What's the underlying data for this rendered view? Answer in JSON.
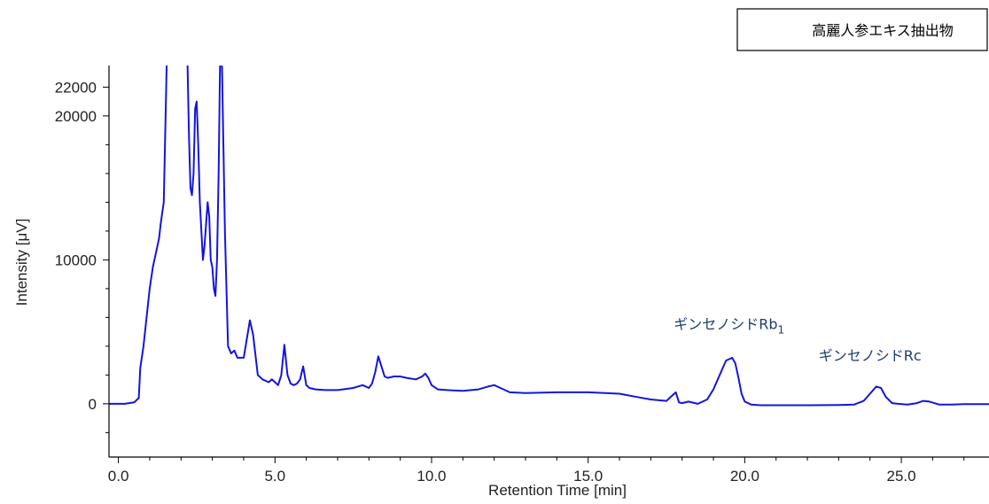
{
  "chart_data": {
    "type": "line",
    "legend": "高麗人参エキス抽出物",
    "xlabel": "Retention Time [min]",
    "ylabel": "Intensity [μV]",
    "xlim": [
      -0.3,
      27.8
    ],
    "ylim": [
      -3700,
      23500
    ],
    "x_ticks": [
      {
        "value": 0,
        "label": "0.0"
      },
      {
        "value": 5,
        "label": "5.0"
      },
      {
        "value": 10,
        "label": "10.0"
      },
      {
        "value": 15,
        "label": "15.0"
      },
      {
        "value": 20,
        "label": "20.0"
      },
      {
        "value": 25,
        "label": "25.0"
      }
    ],
    "y_ticks": [
      {
        "value": 0,
        "label": "0"
      },
      {
        "value": 10000,
        "label": "10000"
      },
      {
        "value": 20000,
        "label": "20000"
      },
      {
        "value": 22000,
        "label": "22000"
      }
    ],
    "annotations": [
      {
        "x": 19.5,
        "y": 5200,
        "text": "ギンセノシドRb",
        "subscript": "1"
      },
      {
        "x": 24.0,
        "y": 3000,
        "text": "ギンセノシドRc",
        "subscript": ""
      }
    ],
    "series": [
      {
        "color": "#1414e0",
        "x": [
          -0.3,
          0.2,
          0.5,
          0.65,
          0.7,
          0.8,
          0.9,
          1.0,
          1.1,
          1.2,
          1.3,
          1.35,
          1.45,
          1.55,
          1.65,
          1.75,
          1.85,
          1.95,
          2.05,
          2.15,
          2.2,
          2.25,
          2.3,
          2.35,
          2.4,
          2.45,
          2.5,
          2.55,
          2.6,
          2.7,
          2.75,
          2.85,
          2.9,
          2.95,
          3.0,
          3.05,
          3.1,
          3.15,
          3.2,
          3.25,
          3.3,
          3.4,
          3.5,
          3.6,
          3.7,
          3.8,
          3.9,
          4.0,
          4.1,
          4.2,
          4.3,
          4.45,
          4.6,
          4.8,
          4.9,
          5.0,
          5.1,
          5.2,
          5.3,
          5.4,
          5.5,
          5.6,
          5.7,
          5.8,
          5.9,
          6.0,
          6.1,
          6.3,
          6.6,
          7.0,
          7.5,
          7.8,
          7.9,
          8.0,
          8.1,
          8.2,
          8.3,
          8.4,
          8.5,
          8.6,
          8.8,
          9.0,
          9.2,
          9.5,
          9.7,
          9.8,
          9.9,
          10.0,
          10.2,
          10.5,
          11.0,
          11.5,
          11.8,
          12.0,
          12.2,
          12.5,
          13.0,
          14.0,
          15.0,
          16.0,
          16.5,
          17.0,
          17.5,
          17.8,
          17.9,
          18.0,
          18.2,
          18.5,
          18.8,
          19.0,
          19.2,
          19.4,
          19.6,
          19.7,
          19.8,
          19.9,
          20.0,
          20.2,
          20.5,
          21.0,
          22.0,
          23.0,
          23.5,
          23.8,
          24.0,
          24.2,
          24.35,
          24.5,
          24.7,
          24.9,
          25.2,
          25.5,
          25.7,
          25.9,
          26.2,
          26.6,
          27.0,
          27.8
        ],
        "y": [
          0,
          0,
          100,
          400,
          2500,
          4000,
          6000,
          8000,
          9500,
          10500,
          11500,
          12500,
          14000,
          24500,
          24500,
          24500,
          24500,
          24500,
          24500,
          24500,
          24500,
          19000,
          15000,
          14500,
          16000,
          20500,
          21000,
          18000,
          14000,
          10000,
          11000,
          14000,
          13000,
          10000,
          9500,
          8000,
          7500,
          10000,
          16000,
          24500,
          24500,
          12000,
          4000,
          3500,
          3700,
          3200,
          3200,
          3200,
          4500,
          5800,
          4800,
          2000,
          1700,
          1500,
          1700,
          1500,
          1300,
          2000,
          4100,
          2000,
          1400,
          1300,
          1400,
          1700,
          2600,
          1300,
          1100,
          1000,
          950,
          950,
          1100,
          1300,
          1200,
          1100,
          1400,
          2200,
          3300,
          2600,
          1900,
          1800,
          1900,
          1900,
          1800,
          1700,
          1900,
          2100,
          1800,
          1300,
          1000,
          950,
          900,
          1000,
          1200,
          1300,
          1100,
          800,
          750,
          800,
          800,
          700,
          500,
          300,
          200,
          800,
          100,
          50,
          150,
          0,
          300,
          1000,
          2000,
          3000,
          3200,
          2800,
          1800,
          700,
          150,
          -50,
          -100,
          -100,
          -100,
          -80,
          -50,
          200,
          700,
          1200,
          1100,
          500,
          50,
          0,
          -50,
          50,
          200,
          150,
          -50,
          -50,
          -20,
          -20
        ]
      }
    ]
  }
}
